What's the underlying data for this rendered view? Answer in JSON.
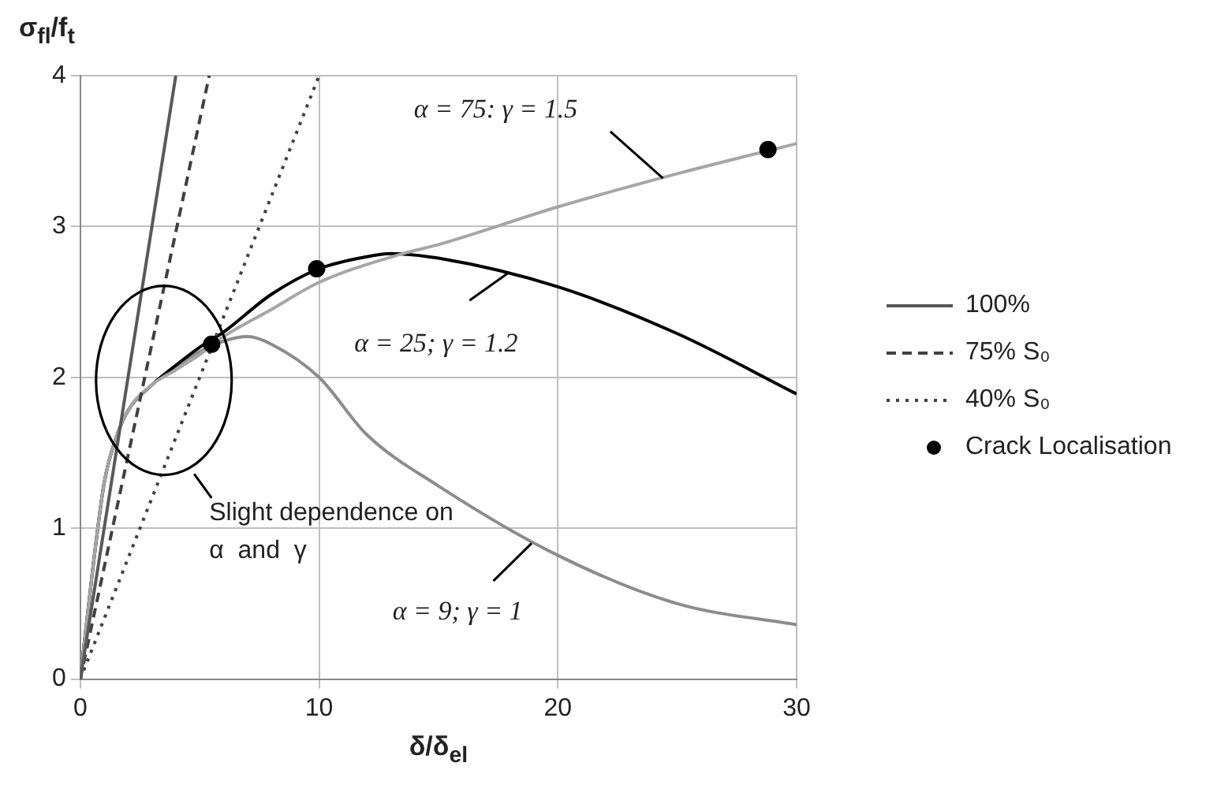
{
  "chart_data": {
    "type": "line",
    "xlabel": "δ/δ$_{el}$",
    "ylabel": "σ$_{fl}$/f$_{t}$",
    "xlim": [
      0,
      30
    ],
    "xticks": [
      0,
      10,
      20,
      30
    ],
    "ylim": [
      0,
      4
    ],
    "yticks": [
      0,
      1,
      2,
      3,
      4
    ],
    "grid": true,
    "legend": "right",
    "marker": "none",
    "series": [
      {
        "name": "100%",
        "color": "#595959",
        "line_style": "solid",
        "x": [
          0,
          4
        ],
        "values": [
          0,
          4
        ]
      },
      {
        "name": "75% S₀",
        "color": "#404040",
        "line_style": "dashed",
        "x": [
          0,
          5.4
        ],
        "values": [
          0,
          4
        ]
      },
      {
        "name": "40% S₀",
        "color": "#404040",
        "line_style": "dotted",
        "x": [
          0,
          10
        ],
        "values": [
          0,
          4
        ]
      },
      {
        "color": "#a6a6a6",
        "line_style": "solid",
        "x": [
          0,
          0.5,
          1,
          1.5,
          2,
          3,
          4,
          5,
          6,
          8,
          10,
          13.5,
          15,
          20,
          25,
          30
        ],
        "values": [
          0,
          0.7,
          1.3,
          1.6,
          1.78,
          1.95,
          2.05,
          2.15,
          2.27,
          2.45,
          2.63,
          2.82,
          2.88,
          3.13,
          3.35,
          3.55
        ]
      },
      {
        "color": "#000000",
        "line_style": "solid",
        "x": [
          0,
          0.5,
          1,
          1.5,
          2,
          3,
          4,
          5,
          6,
          8,
          10,
          12,
          13,
          15,
          20,
          25,
          30
        ],
        "values": [
          0,
          0.7,
          1.3,
          1.6,
          1.78,
          1.95,
          2.08,
          2.2,
          2.3,
          2.55,
          2.72,
          2.8,
          2.82,
          2.79,
          2.6,
          2.29,
          1.89
        ]
      },
      {
        "color": "#8c8c8c",
        "line_style": "solid",
        "x": [
          0,
          0.5,
          1,
          1.5,
          2,
          3,
          4,
          5,
          6,
          7,
          8,
          10,
          12,
          15,
          20,
          25,
          30
        ],
        "values": [
          0,
          0.7,
          1.3,
          1.6,
          1.78,
          1.95,
          2.07,
          2.17,
          2.24,
          2.27,
          2.22,
          2.0,
          1.62,
          1.28,
          0.82,
          0.5,
          0.36
        ]
      },
      {
        "name": "Crack Localisation",
        "type": "scatter",
        "color": "#000000",
        "marker": "circle",
        "x": [
          5.5,
          9.9,
          28.8
        ],
        "values": [
          2.22,
          2.72,
          3.51
        ]
      }
    ],
    "annotations": [
      {
        "text": "α = 75: γ = 1.5",
        "x": 24.4,
        "y": 3.32
      },
      {
        "text": "α = 25; γ = 1.2",
        "x": 17.9,
        "y": 2.69
      },
      {
        "text": "α = 9; γ = 1",
        "x": 18.9,
        "y": 0.9
      },
      "Slight dependence on\nα  and  γ"
    ]
  }
}
